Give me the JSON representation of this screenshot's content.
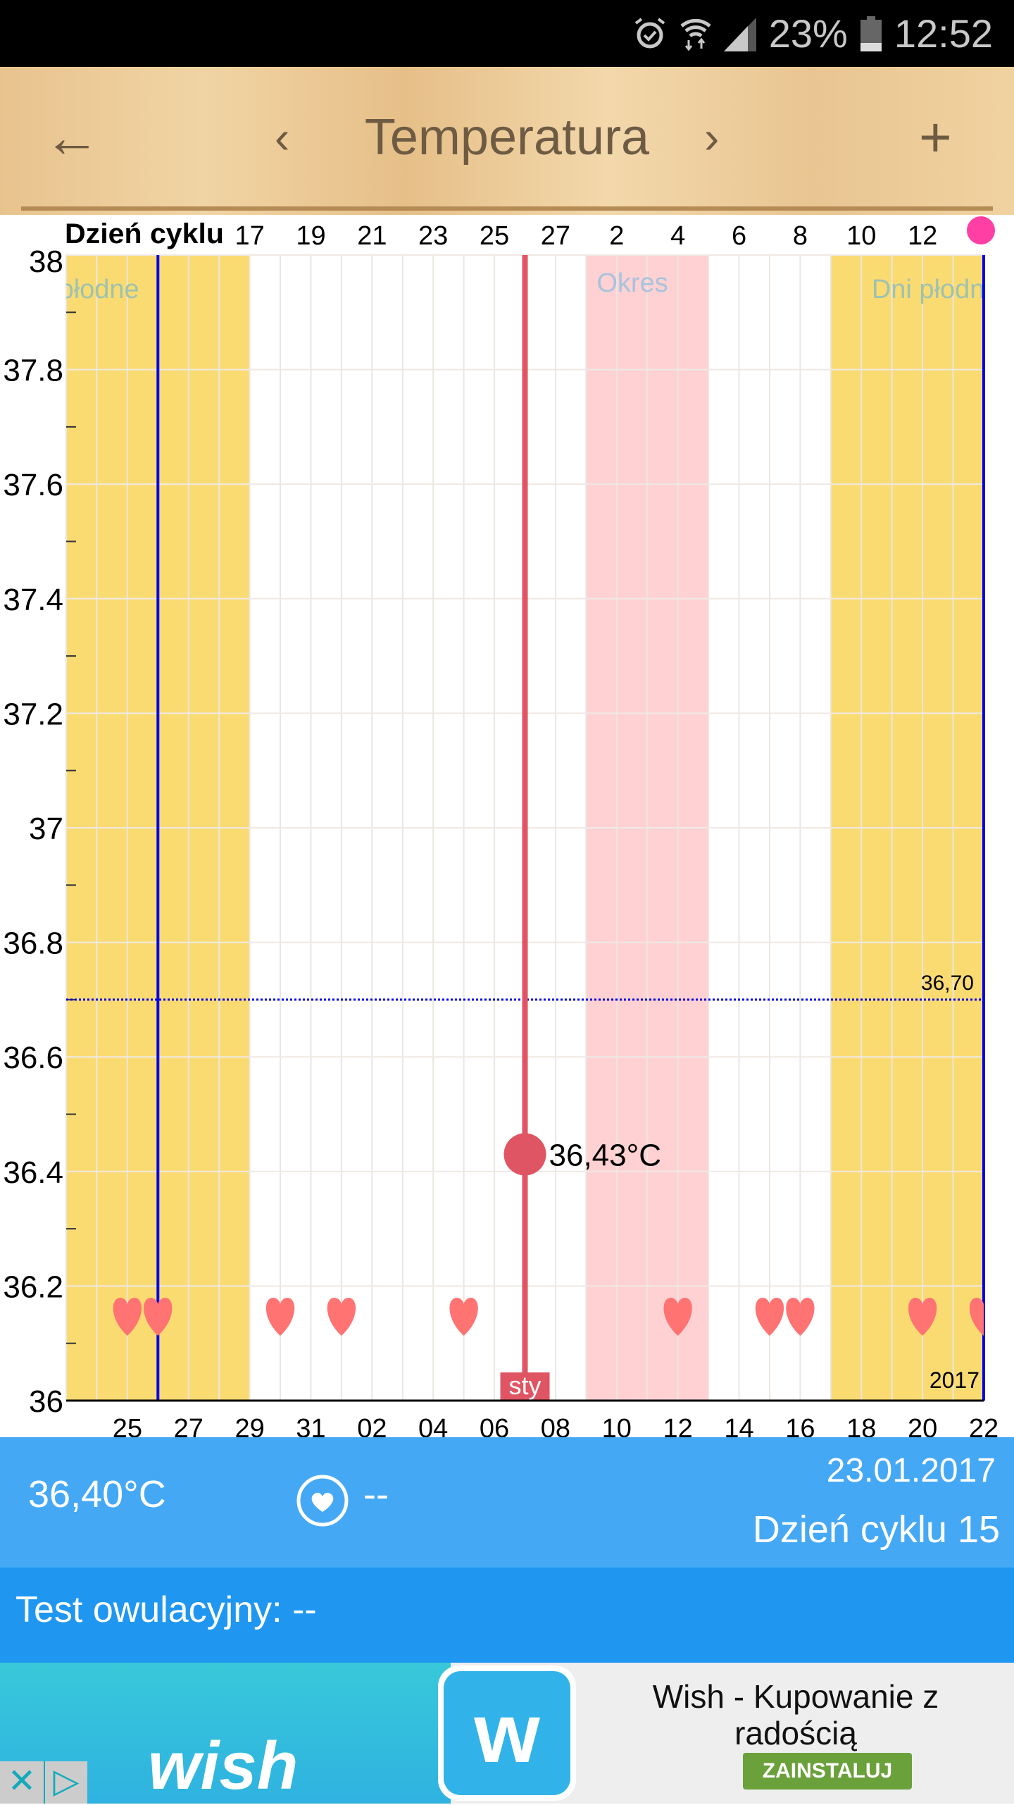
{
  "status_bar": {
    "battery": "23%",
    "time": "12:52",
    "icons": [
      "alarm-icon",
      "wifi-icon",
      "signal-icon",
      "battery-icon"
    ]
  },
  "header": {
    "title": "Temperatura",
    "back_icon": "arrow-left-icon",
    "prev_icon": "chevron-left-icon",
    "next_icon": "chevron-right-icon",
    "add_icon": "plus-icon"
  },
  "chart_data": {
    "type": "line",
    "cycle_axis_label": "Dzień cyklu",
    "x_range": [
      "2016-12-23",
      "2017-01-22"
    ],
    "ylim": [
      36,
      38
    ],
    "y_ticks": [
      "38",
      "37.8",
      "37.6",
      "37.4",
      "37.2",
      "37",
      "36.8",
      "36.6",
      "36.4",
      "36.2",
      "36"
    ],
    "y_tick_values": [
      38,
      37.8,
      37.6,
      37.4,
      37.2,
      37,
      36.8,
      36.6,
      36.4,
      36.2,
      36
    ],
    "grid": true,
    "date_ticks": [
      {
        "date": "2016-12-25",
        "label": "25"
      },
      {
        "date": "2016-12-27",
        "label": "27"
      },
      {
        "date": "2016-12-29",
        "label": "29"
      },
      {
        "date": "2016-12-31",
        "label": "31"
      },
      {
        "date": "2017-01-02",
        "label": "02"
      },
      {
        "date": "2017-01-04",
        "label": "04"
      },
      {
        "date": "2017-01-06",
        "label": "06"
      },
      {
        "date": "2017-01-08",
        "label": "08"
      },
      {
        "date": "2017-01-10",
        "label": "10"
      },
      {
        "date": "2017-01-12",
        "label": "12"
      },
      {
        "date": "2017-01-14",
        "label": "14"
      },
      {
        "date": "2017-01-16",
        "label": "16"
      },
      {
        "date": "2017-01-18",
        "label": "18"
      },
      {
        "date": "2017-01-20",
        "label": "20"
      },
      {
        "date": "2017-01-22",
        "label": "22"
      }
    ],
    "cycle_ticks": [
      {
        "date": "2016-12-29",
        "label": "17"
      },
      {
        "date": "2016-12-31",
        "label": "19"
      },
      {
        "date": "2017-01-02",
        "label": "21"
      },
      {
        "date": "2017-01-04",
        "label": "23"
      },
      {
        "date": "2017-01-06",
        "label": "25"
      },
      {
        "date": "2017-01-08",
        "label": "27"
      },
      {
        "date": "2017-01-10",
        "label": "2"
      },
      {
        "date": "2017-01-12",
        "label": "4"
      },
      {
        "date": "2017-01-14",
        "label": "6"
      },
      {
        "date": "2017-01-16",
        "label": "8"
      },
      {
        "date": "2017-01-18",
        "label": "10"
      },
      {
        "date": "2017-01-20",
        "label": "12"
      }
    ],
    "bands": [
      {
        "label": "Dni płodne",
        "start": "2016-12-23",
        "end": "2016-12-28",
        "color": "#fadb72"
      },
      {
        "label": "Okres",
        "start": "2017-01-09",
        "end": "2017-01-12",
        "color": "#ffd1d3"
      },
      {
        "label": "Dni płodne",
        "start": "2017-01-17",
        "end": "2017-01-22",
        "color": "#fadb72"
      }
    ],
    "ovulation_lines": [
      "2016-12-26",
      "2017-01-22"
    ],
    "cover_line": {
      "value": 36.7,
      "label": "36,70"
    },
    "selected": {
      "date": "2017-01-07",
      "value": 36.43,
      "label": "36,43°C",
      "month_label": "sty"
    },
    "year_label": "2017",
    "intercourse_dates": [
      "2016-12-25",
      "2016-12-26",
      "2016-12-30",
      "2017-01-01",
      "2017-01-05",
      "2017-01-12",
      "2017-01-15",
      "2017-01-16",
      "2017-01-20",
      "2017-01-22"
    ],
    "colors": {
      "selected": "#e05563",
      "ovulation": "#0000ee",
      "heart": "#ff7373",
      "band_label_fertile": "#9fc2b0",
      "band_label_period": "#a7c3de"
    }
  },
  "info": {
    "temperature": "36,40°C",
    "heart_icon": "heart-circle-icon",
    "intercourse_value": "--",
    "date": "23.01.2017",
    "cycle_day": "Dzień cyklu 15"
  },
  "test": {
    "label": "Test owulacyjny:",
    "value": "--"
  },
  "ad": {
    "brand": "wish",
    "title_line1": "Wish - Kupowanie z",
    "title_line2": "radością",
    "install": "ZAINSTALUJ"
  }
}
